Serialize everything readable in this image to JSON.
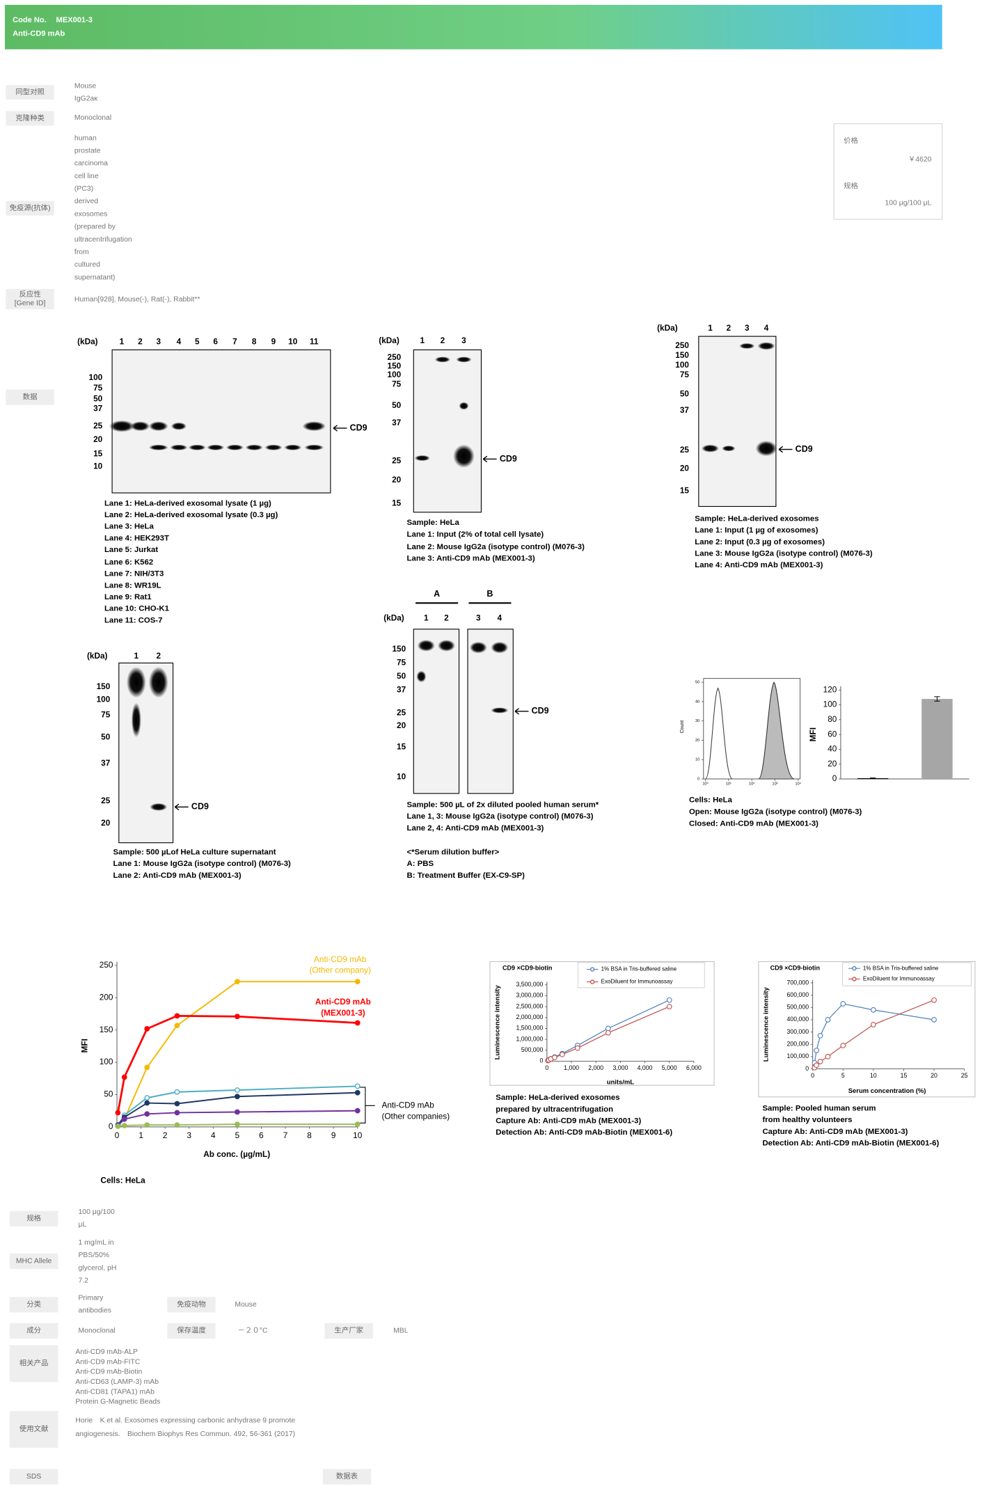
{
  "header": {
    "code_label": "Code No.",
    "code": "MEX001-3",
    "product": "Anti-CD9 mAb"
  },
  "specs": [
    {
      "label": [
        "同型对照"
      ],
      "value": [
        "Mouse",
        "IgG2aκ"
      ]
    },
    {
      "label": [
        "克隆种类"
      ],
      "value": [
        "Monoclonal"
      ]
    },
    {
      "label": [
        "免疫源(抗体)"
      ],
      "value": [
        "human",
        "prostate",
        "carcinoma",
        "cell line",
        "(PC3)",
        "derived",
        "exosomes",
        "(prepared by",
        "ultracentrifugation",
        "from",
        "cultured",
        "supernatant)"
      ]
    },
    {
      "label": [
        "反应性",
        "[Gene ID]"
      ],
      "value": [
        "Human[928], Mouse(-), Rat(-), Rabbit**"
      ]
    }
  ],
  "data_label": "数据",
  "price_box": {
    "price_label": "价格",
    "price": "￥4620",
    "size_label": "规格",
    "size": "100 μg/100 μL"
  },
  "blots": [
    {
      "kda_label": "(kDa)",
      "lanes": [
        1,
        2,
        3,
        4,
        5,
        6,
        7,
        8,
        9,
        10,
        11
      ],
      "markers": [
        100,
        75,
        50,
        37,
        25,
        20,
        15,
        10
      ],
      "target": "CD9",
      "caption": [
        "Lane 1: HeLa-derived exosomal lysate (1 µg)",
        "Lane 2: HeLa-derived exosomal lysate (0.3 µg)",
        "Lane 3: HeLa",
        "Lane 4: HEK293T",
        "Lane 5: Jurkat",
        "Lane 6: K562",
        "Lane 7: NIH/3T3",
        "Lane 8: WR19L",
        "Lane 9: Rat1",
        "Lane 10: CHO-K1",
        "Lane 11: COS-7"
      ]
    },
    {
      "kda_label": "(kDa)",
      "lanes": [
        1,
        2,
        3
      ],
      "markers": [
        250,
        150,
        100,
        75,
        50,
        37,
        25,
        20,
        15
      ],
      "target": "CD9",
      "caption": [
        "Sample: HeLa",
        "Lane 1: Input (2% of total cell lysate)",
        "Lane 2: Mouse IgG2a (isotype control) (M076-3)",
        "Lane 3: Anti-CD9 mAb (MEX001-3)"
      ]
    },
    {
      "kda_label": "(kDa)",
      "lanes": [
        1,
        2,
        3,
        4
      ],
      "markers": [
        250,
        150,
        100,
        75,
        50,
        37,
        25,
        20,
        15
      ],
      "target": "CD9",
      "caption": [
        "Sample: HeLa-derived  exosomes",
        "Lane 1: Input (1 µg of exosomes)",
        "Lane 2: Input (0.3 µg of exosomes)",
        "Lane 3: Mouse IgG2a (isotype control) (M076-3)",
        "Lane 4: Anti-CD9 mAb (MEX001-3)"
      ]
    },
    {
      "kda_label": "(kDa)",
      "lanes": [
        1,
        2
      ],
      "markers": [
        150,
        100,
        75,
        50,
        37,
        25,
        20
      ],
      "target": "CD9",
      "caption": [
        "Sample: 500 µLof HeLa culture supernatant",
        "Lane 1: Mouse IgG2a (isotype control) (M076-3)",
        "Lane 2: Anti-CD9 mAb (MEX001-3)"
      ]
    },
    {
      "kda_label": "(kDa)",
      "groups": [
        "A",
        "B"
      ],
      "lanes": [
        1,
        2,
        3,
        4
      ],
      "markers": [
        150,
        75,
        50,
        37,
        25,
        20,
        15,
        10
      ],
      "target": "CD9",
      "caption": [
        "Sample: 500 µL of 2x diluted pooled human serum*",
        "Lane 1, 3: Mouse IgG2a (isotype control) (M076-3)",
        "Lane 2, 4: Anti-CD9 mAb (MEX001-3)",
        "<*Serum dilution buffer>",
        "A:  PBS",
        "B:  Treatment Buffer (EX-C9-SP)"
      ]
    }
  ],
  "flow": {
    "histogram": {
      "type": "histogram",
      "ylabel": "Count",
      "xscale": "log",
      "xlim": [
        1,
        10000
      ],
      "xticks": [
        {
          "value": 1,
          "label": "10⁰"
        },
        {
          "value": 10,
          "label": "10¹"
        },
        {
          "value": 100,
          "label": "10²"
        },
        {
          "value": 1000,
          "label": "10³"
        },
        {
          "value": 10000,
          "label": "10⁴"
        }
      ],
      "ylim": [
        0,
        50
      ],
      "yticks": [
        0,
        10,
        20,
        30,
        40,
        50
      ]
    },
    "bar_chart": {
      "type": "bar",
      "ylabel": "MFI",
      "categories": [
        null,
        null
      ],
      "values": [
        1,
        108
      ],
      "errors": [
        0.5,
        3
      ],
      "color": "#a6a6a6",
      "ylim": [
        0,
        120
      ],
      "yticks": [
        0,
        20,
        40,
        60,
        80,
        100,
        120
      ]
    },
    "caption": [
      "Cells: HeLa",
      "Open: Mouse IgG2a (isotype control) (M076-3)",
      "Closed: Anti-CD9 mAb (MEX001-3)"
    ]
  },
  "line_chart": {
    "type": "line",
    "xlabel": "Ab conc. (µg/mL)",
    "ylabel": "MFI",
    "x": [
      0.04,
      0.31,
      1.25,
      2.5,
      5,
      10
    ],
    "series": [
      {
        "color": "#f5b800",
        "values": [
          2,
          12,
          92,
          157,
          225,
          225
        ]
      },
      {
        "color": "#ff0000",
        "values": [
          22,
          77,
          152,
          172,
          171,
          161
        ]
      },
      {
        "color": "#4bacc6",
        "values": [
          3,
          18,
          45,
          54,
          57,
          63
        ]
      },
      {
        "color": "#1f3864",
        "values": [
          3,
          15,
          37,
          36,
          47,
          53
        ]
      },
      {
        "color": "#7030a0",
        "values": [
          2,
          12,
          20,
          22,
          23,
          25
        ]
      },
      {
        "color": "#9bbb59",
        "values": [
          1,
          2,
          3,
          3,
          4,
          4
        ]
      }
    ],
    "annotations": [
      [
        "Anti-CD9 mAb",
        "(Other company)"
      ],
      [
        "Anti-CD9 mAb",
        "(MEX001-3)"
      ],
      [
        "Anti-CD9 mAb",
        "(Other companies)"
      ]
    ],
    "xlim": [
      0,
      10
    ],
    "xticks": [
      0,
      1,
      2,
      3,
      4,
      5,
      6,
      7,
      8,
      9,
      10
    ],
    "ylim": [
      0,
      250
    ],
    "yticks": [
      0,
      50,
      100,
      150,
      200,
      250
    ],
    "caption": [
      "Cells: HeLa"
    ]
  },
  "lum_charts": [
    {
      "type": "line",
      "title": "CD9 ×CD9-biotin",
      "xlabel": "units/mL",
      "ylabel": "Luminescence intensity",
      "x": [
        39,
        78,
        156,
        313,
        625,
        1250,
        2500,
        5000
      ],
      "series": [
        {
          "name": "1% BSA in Tris-buffered saline",
          "color": "#4f81bd",
          "values": [
            30000,
            60000,
            110000,
            190000,
            350000,
            720000,
            1500000,
            2800000
          ]
        },
        {
          "name": "ExoDiluent for Immunoassay",
          "color": "#c0504d",
          "values": [
            25000,
            50000,
            100000,
            170000,
            310000,
            600000,
            1300000,
            2500000
          ]
        }
      ],
      "xlim": [
        0,
        6000
      ],
      "xticks": [
        0,
        {
          "value": 1000,
          "label": "1,000"
        },
        {
          "value": 2000,
          "label": "2,000"
        },
        {
          "value": 3000,
          "label": "3,000"
        },
        {
          "value": 4000,
          "label": "4,000"
        },
        {
          "value": 5000,
          "label": "5,000"
        },
        {
          "value": 6000,
          "label": "6,000"
        }
      ],
      "ylim": [
        0,
        3500000
      ],
      "yticks": [
        0,
        {
          "value": 500000,
          "label": "500,000"
        },
        {
          "value": 1000000,
          "label": "1,000,000"
        },
        {
          "value": 1500000,
          "label": "1,500,000"
        },
        {
          "value": 2000000,
          "label": "2,000,000"
        },
        {
          "value": 2500000,
          "label": "2,500,000"
        },
        {
          "value": 3000000,
          "label": "3,000,000"
        },
        {
          "value": 3500000,
          "label": "3,500,000"
        }
      ],
      "caption": [
        "Sample: HeLa-derived exosomes",
        "            prepared by ultracentrifugation",
        "Capture Ab: Anti-CD9 mAb (MEX001-3)",
        "Detection Ab: Anti-CD9 mAb-Biotin (MEX001-6)"
      ]
    },
    {
      "type": "line",
      "title": "CD9 ×CD9-biotin",
      "xlabel": "Serum concentration (%)",
      "ylabel": "Luminescence intensity",
      "x": [
        0.31,
        0.63,
        1.25,
        2.5,
        5,
        10,
        20
      ],
      "series": [
        {
          "name": "1% BSA in Tris-buffered saline",
          "color": "#4f81bd",
          "values": [
            50000,
            150000,
            270000,
            400000,
            530000,
            480000,
            400000
          ]
        },
        {
          "name": "ExoDiluent for Immunoassay",
          "color": "#c0504d",
          "values": [
            10000,
            30000,
            60000,
            100000,
            190000,
            360000,
            560000
          ]
        }
      ],
      "xlim": [
        0,
        25
      ],
      "xticks": [
        0,
        5,
        10,
        15,
        20,
        25
      ],
      "ylim": [
        0,
        700000
      ],
      "yticks": [
        0,
        {
          "value": 100000,
          "label": "100,000"
        },
        {
          "value": 200000,
          "label": "200,000"
        },
        {
          "value": 300000,
          "label": "300,000"
        },
        {
          "value": 400000,
          "label": "400,000"
        },
        {
          "value": 500000,
          "label": "500,000"
        },
        {
          "value": 600000,
          "label": "600,000"
        },
        {
          "value": 700000,
          "label": "700,000"
        }
      ],
      "caption": [
        "Sample: Pooled human serum",
        "          from healthy volunteers",
        "Capture Ab: Anti-CD9 mAb (MEX001-3)",
        "Detection Ab: Anti-CD9 mAb-Biotin (MEX001-6)"
      ]
    }
  ],
  "details": {
    "size": {
      "label": "规格",
      "value": [
        "100 μg/100",
        "μL"
      ]
    },
    "mhc_allele": {
      "label": "MHC Allele",
      "value": [
        "1 mg/mL in",
        "PBS/50%",
        "glycerol, pH",
        "7.2"
      ]
    },
    "category": {
      "label": "分类",
      "value": [
        "Primary",
        "antibodies"
      ]
    },
    "host": {
      "label": "免疫动物",
      "value": [
        "Mouse"
      ]
    },
    "component": {
      "label": "成分",
      "value": [
        "Monoclonal"
      ]
    },
    "storage": {
      "label": "保存温度",
      "value": [
        "－２０°C"
      ]
    },
    "manufacturer": {
      "label": "生产厂家",
      "value": [
        "MBL"
      ]
    },
    "related": {
      "label": "相关产品",
      "value": [
        "Anti-CD9 mAb-ALP",
        "Anti-CD9 mAb-FITC",
        "Anti-CD9 mAb-Biotin",
        "Anti-CD63 (LAMP-3) mAb",
        "Anti-CD81 (TAPA1) mAb",
        "Protein G-Magnetic Beads"
      ]
    },
    "references": {
      "label": "使用文献",
      "value": [
        "Horie　K et al. Exosomes expressing carbonic anhydrase 9 promote",
        "angiogenesis.　Biochem Biophys Res Commun. 492, 56-361 (2017)"
      ]
    },
    "sds": {
      "label": "SDS"
    },
    "datasheet": {
      "label": "数据表"
    }
  }
}
